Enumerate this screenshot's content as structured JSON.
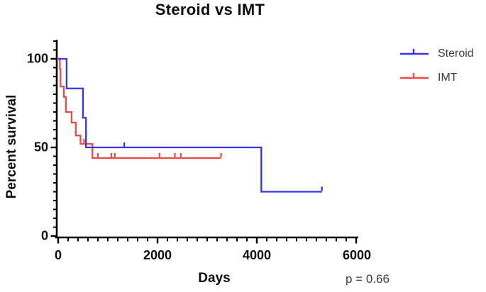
{
  "chart_data": {
    "type": "line",
    "subtype": "kaplan-meier-step",
    "title": "Steroid vs IMT",
    "xlabel": "Days",
    "ylabel": "Percent survival",
    "annotation": "p = 0.66",
    "xlim": [
      0,
      6000
    ],
    "ylim": [
      0,
      110
    ],
    "grid": false,
    "legend_position": "top-right",
    "x_ticks": [
      {
        "value": 0,
        "label": "0"
      },
      {
        "value": 2000,
        "label": "2000"
      },
      {
        "value": 4000,
        "label": "4000"
      },
      {
        "value": 6000,
        "label": "6000"
      }
    ],
    "y_ticks": [
      {
        "value": 0,
        "label": "0"
      },
      {
        "value": 50,
        "label": "50"
      },
      {
        "value": 100,
        "label": "100"
      }
    ],
    "x_minor_tick_interval": 200,
    "y_minor_tick_interval": 5,
    "axis_color": "#000000",
    "series": [
      {
        "name": "Steroid",
        "color": "#3434f2",
        "steps": [
          [
            0,
            100
          ],
          [
            170,
            100
          ],
          [
            170,
            83.3
          ],
          [
            500,
            83.3
          ],
          [
            500,
            66.7
          ],
          [
            560,
            66.7
          ],
          [
            560,
            50
          ],
          [
            4090,
            50
          ],
          [
            4090,
            25
          ],
          [
            5310,
            25
          ]
        ],
        "censor_marks": [
          [
            1330,
            50
          ],
          [
            5310,
            25
          ]
        ]
      },
      {
        "name": "IMT",
        "color": "#f04a40",
        "steps": [
          [
            0,
            100
          ],
          [
            35,
            100
          ],
          [
            35,
            94.4
          ],
          [
            48,
            94.4
          ],
          [
            48,
            84.4
          ],
          [
            115,
            84.4
          ],
          [
            115,
            78.5
          ],
          [
            155,
            78.5
          ],
          [
            155,
            70
          ],
          [
            270,
            70
          ],
          [
            270,
            64
          ],
          [
            355,
            64
          ],
          [
            355,
            56.7
          ],
          [
            450,
            56.7
          ],
          [
            450,
            52
          ],
          [
            690,
            52
          ],
          [
            690,
            44
          ],
          [
            3280,
            44
          ]
        ],
        "censor_marks": [
          [
            520,
            52
          ],
          [
            800,
            44
          ],
          [
            1070,
            44
          ],
          [
            1140,
            44
          ],
          [
            2040,
            44
          ],
          [
            2350,
            44
          ],
          [
            2470,
            44
          ],
          [
            3280,
            44
          ]
        ]
      }
    ]
  }
}
